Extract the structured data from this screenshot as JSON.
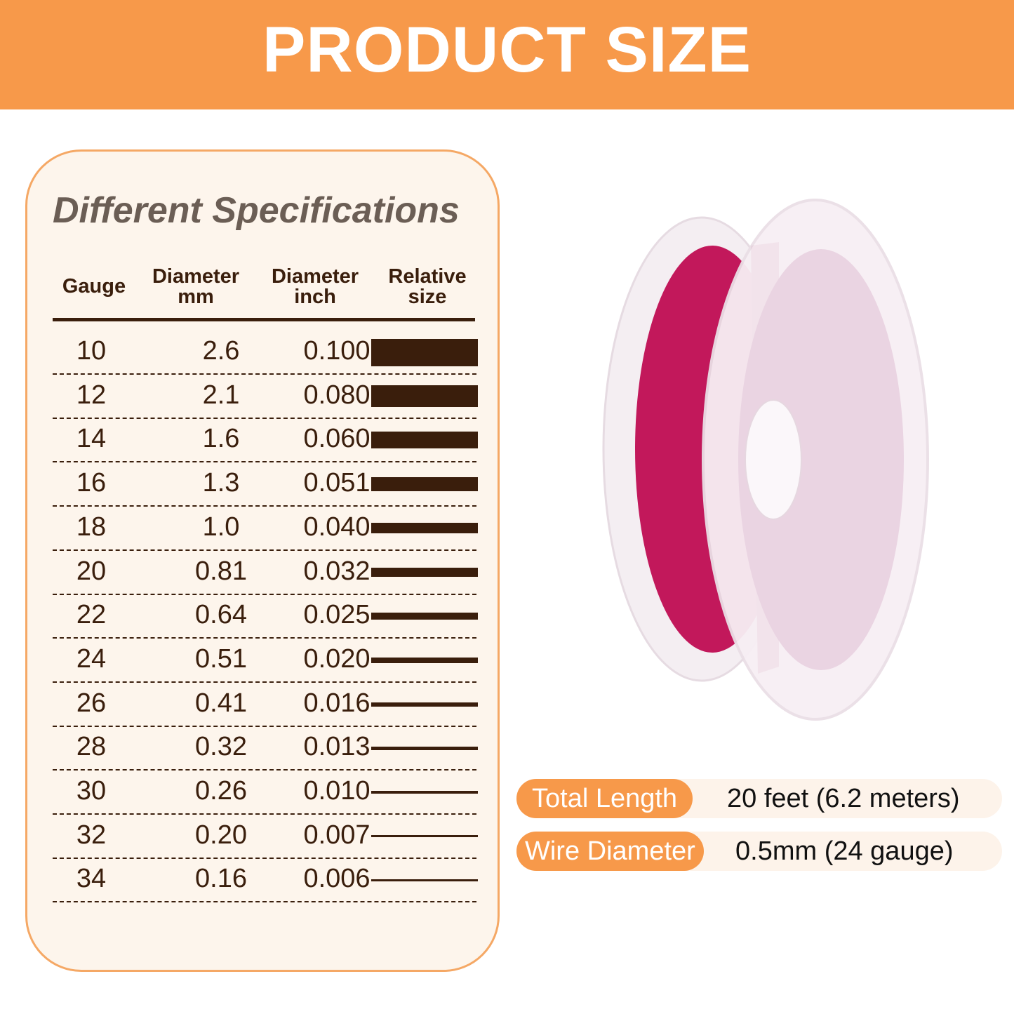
{
  "banner": {
    "title": "PRODUCT SIZE"
  },
  "specs": {
    "title": "Different Specifications",
    "headers": {
      "gauge": "Gauge",
      "mm": "Diameter\nmm",
      "inch": "Diameter\ninch",
      "relative": "Relative\nsize"
    },
    "rows": [
      {
        "gauge": "10",
        "mm": "2.6",
        "inch": "0.100"
      },
      {
        "gauge": "12",
        "mm": "2.1",
        "inch": "0.080"
      },
      {
        "gauge": "14",
        "mm": "1.6",
        "inch": "0.060"
      },
      {
        "gauge": "16",
        "mm": "1.3",
        "inch": "0.051"
      },
      {
        "gauge": "18",
        "mm": "1.0",
        "inch": "0.040"
      },
      {
        "gauge": "20",
        "mm": "0.81",
        "inch": "0.032"
      },
      {
        "gauge": "22",
        "mm": "0.64",
        "inch": "0.025"
      },
      {
        "gauge": "24",
        "mm": "0.51",
        "inch": "0.020"
      },
      {
        "gauge": "26",
        "mm": "0.41",
        "inch": "0.016"
      },
      {
        "gauge": "28",
        "mm": "0.32",
        "inch": "0.013"
      },
      {
        "gauge": "30",
        "mm": "0.26",
        "inch": "0.010"
      },
      {
        "gauge": "32",
        "mm": "0.20",
        "inch": "0.007"
      },
      {
        "gauge": "34",
        "mm": "0.16",
        "inch": "0.006"
      }
    ]
  },
  "product": {
    "wire_color": "#c2185b",
    "total_length_label": "Total Length",
    "total_length_value": "20 feet (6.2 meters)",
    "wire_diameter_label": "Wire Diameter",
    "wire_diameter_value": "0.5mm (24 gauge)"
  }
}
